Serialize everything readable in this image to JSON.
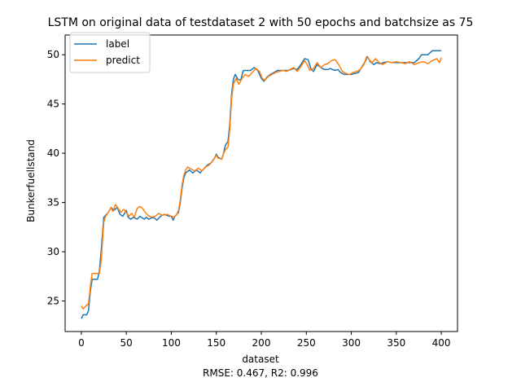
{
  "chart_data": {
    "type": "line",
    "title": "LSTM on original data of testdataset 2 with 50 epochs and batchsize as 75",
    "xlabel": "dataset",
    "xlabel_note": "RMSE: 0.467, R2: 0.996",
    "ylabel": "Bunkerfuellstand",
    "xlim": [
      -18,
      418
    ],
    "ylim": [
      21.9,
      52.0
    ],
    "xticks": [
      0,
      50,
      100,
      150,
      200,
      250,
      300,
      350,
      400
    ],
    "yticks": [
      25,
      30,
      35,
      40,
      45,
      50
    ],
    "legend": "top-left",
    "grid": false,
    "series": [
      {
        "name": "label",
        "color": "#1f77b4",
        "points": [
          [
            0,
            23.2
          ],
          [
            2,
            23.6
          ],
          [
            6,
            23.6
          ],
          [
            8,
            24.0
          ],
          [
            10,
            26.0
          ],
          [
            12,
            27.2
          ],
          [
            18,
            27.2
          ],
          [
            20,
            28.0
          ],
          [
            22,
            30.0
          ],
          [
            25,
            33.5
          ],
          [
            30,
            34.0
          ],
          [
            33,
            34.5
          ],
          [
            36,
            34.2
          ],
          [
            40,
            34.5
          ],
          [
            43,
            33.8
          ],
          [
            46,
            33.6
          ],
          [
            50,
            34.2
          ],
          [
            52,
            33.5
          ],
          [
            55,
            33.3
          ],
          [
            58,
            33.5
          ],
          [
            62,
            33.3
          ],
          [
            65,
            33.6
          ],
          [
            70,
            33.3
          ],
          [
            72,
            33.5
          ],
          [
            75,
            33.3
          ],
          [
            80,
            33.5
          ],
          [
            84,
            33.2
          ],
          [
            88,
            33.6
          ],
          [
            92,
            33.8
          ],
          [
            98,
            33.6
          ],
          [
            100,
            33.6
          ],
          [
            102,
            33.2
          ],
          [
            104,
            33.6
          ],
          [
            108,
            34.0
          ],
          [
            110,
            35.0
          ],
          [
            112,
            36.5
          ],
          [
            114,
            37.5
          ],
          [
            116,
            38.0
          ],
          [
            120,
            38.3
          ],
          [
            124,
            38.0
          ],
          [
            128,
            38.3
          ],
          [
            132,
            38.0
          ],
          [
            136,
            38.4
          ],
          [
            140,
            38.8
          ],
          [
            144,
            39.0
          ],
          [
            148,
            39.5
          ],
          [
            150,
            39.9
          ],
          [
            152,
            39.6
          ],
          [
            156,
            39.4
          ],
          [
            158,
            40.0
          ],
          [
            160,
            40.8
          ],
          [
            163,
            41.2
          ],
          [
            165,
            43.0
          ],
          [
            167,
            46.0
          ],
          [
            169,
            47.5
          ],
          [
            171,
            48.0
          ],
          [
            174,
            47.5
          ],
          [
            177,
            47.4
          ],
          [
            180,
            48.4
          ],
          [
            184,
            48.4
          ],
          [
            188,
            48.4
          ],
          [
            192,
            48.7
          ],
          [
            196,
            48.4
          ],
          [
            200,
            47.6
          ],
          [
            203,
            47.3
          ],
          [
            206,
            47.7
          ],
          [
            210,
            48.0
          ],
          [
            214,
            48.2
          ],
          [
            218,
            48.4
          ],
          [
            222,
            48.4
          ],
          [
            226,
            48.4
          ],
          [
            230,
            48.4
          ],
          [
            236,
            48.6
          ],
          [
            240,
            48.5
          ],
          [
            244,
            49.0
          ],
          [
            248,
            49.6
          ],
          [
            252,
            49.5
          ],
          [
            255,
            48.6
          ],
          [
            258,
            48.3
          ],
          [
            262,
            49.0
          ],
          [
            266,
            48.7
          ],
          [
            270,
            48.5
          ],
          [
            274,
            48.5
          ],
          [
            277,
            48.6
          ],
          [
            279,
            48.5
          ],
          [
            282,
            48.4
          ],
          [
            285,
            48.5
          ],
          [
            288,
            48.2
          ],
          [
            292,
            48.0
          ],
          [
            296,
            48.0
          ],
          [
            300,
            48.0
          ],
          [
            304,
            48.1
          ],
          [
            308,
            48.2
          ],
          [
            312,
            48.8
          ],
          [
            316,
            49.4
          ],
          [
            318,
            49.8
          ],
          [
            321,
            49.3
          ],
          [
            325,
            49.0
          ],
          [
            328,
            49.2
          ],
          [
            332,
            49.1
          ],
          [
            336,
            49.2
          ],
          [
            340,
            49.3
          ],
          [
            345,
            49.2
          ],
          [
            350,
            49.2
          ],
          [
            355,
            49.2
          ],
          [
            360,
            49.2
          ],
          [
            365,
            49.2
          ],
          [
            370,
            49.2
          ],
          [
            375,
            49.6
          ],
          [
            378,
            50.0
          ],
          [
            385,
            50.0
          ],
          [
            390,
            50.4
          ],
          [
            395,
            50.4
          ],
          [
            400,
            50.4
          ]
        ]
      },
      {
        "name": "predict",
        "color": "#ff7f0e",
        "points": [
          [
            0,
            24.5
          ],
          [
            2,
            24.2
          ],
          [
            5,
            24.5
          ],
          [
            8,
            24.7
          ],
          [
            10,
            26.5
          ],
          [
            12,
            27.8
          ],
          [
            17,
            27.8
          ],
          [
            20,
            27.8
          ],
          [
            22,
            29.0
          ],
          [
            25,
            33.0
          ],
          [
            27,
            33.6
          ],
          [
            30,
            34.0
          ],
          [
            33,
            34.5
          ],
          [
            35,
            34.1
          ],
          [
            38,
            34.8
          ],
          [
            41,
            34.4
          ],
          [
            44,
            34.0
          ],
          [
            47,
            34.3
          ],
          [
            50,
            34.0
          ],
          [
            53,
            33.6
          ],
          [
            56,
            33.9
          ],
          [
            59,
            33.5
          ],
          [
            62,
            34.4
          ],
          [
            65,
            34.6
          ],
          [
            68,
            34.4
          ],
          [
            71,
            34.0
          ],
          [
            74,
            33.7
          ],
          [
            78,
            33.5
          ],
          [
            82,
            33.6
          ],
          [
            86,
            33.9
          ],
          [
            90,
            33.7
          ],
          [
            95,
            33.8
          ],
          [
            100,
            33.6
          ],
          [
            103,
            33.5
          ],
          [
            106,
            33.8
          ],
          [
            108,
            34.2
          ],
          [
            110,
            35.3
          ],
          [
            112,
            36.8
          ],
          [
            114,
            37.8
          ],
          [
            116,
            38.3
          ],
          [
            118,
            38.6
          ],
          [
            122,
            38.4
          ],
          [
            126,
            38.2
          ],
          [
            130,
            38.5
          ],
          [
            134,
            38.2
          ],
          [
            138,
            38.6
          ],
          [
            142,
            38.8
          ],
          [
            146,
            39.2
          ],
          [
            150,
            39.8
          ],
          [
            152,
            39.5
          ],
          [
            156,
            39.4
          ],
          [
            158,
            40.0
          ],
          [
            161,
            40.5
          ],
          [
            163,
            40.6
          ],
          [
            165,
            42.5
          ],
          [
            167,
            45.5
          ],
          [
            169,
            47.0
          ],
          [
            172,
            47.6
          ],
          [
            175,
            47.0
          ],
          [
            178,
            47.5
          ],
          [
            182,
            48.0
          ],
          [
            186,
            47.8
          ],
          [
            190,
            48.2
          ],
          [
            194,
            48.6
          ],
          [
            198,
            48.3
          ],
          [
            201,
            47.6
          ],
          [
            204,
            47.4
          ],
          [
            208,
            47.8
          ],
          [
            212,
            48.0
          ],
          [
            216,
            48.2
          ],
          [
            220,
            48.3
          ],
          [
            224,
            48.4
          ],
          [
            228,
            48.3
          ],
          [
            232,
            48.5
          ],
          [
            236,
            48.7
          ],
          [
            240,
            48.3
          ],
          [
            244,
            48.8
          ],
          [
            248,
            49.4
          ],
          [
            251,
            49.0
          ],
          [
            254,
            48.4
          ],
          [
            258,
            48.6
          ],
          [
            262,
            49.2
          ],
          [
            266,
            48.7
          ],
          [
            270,
            49.0
          ],
          [
            274,
            49.1
          ],
          [
            278,
            49.4
          ],
          [
            282,
            49.5
          ],
          [
            286,
            49.0
          ],
          [
            290,
            48.3
          ],
          [
            294,
            48.1
          ],
          [
            298,
            48.0
          ],
          [
            302,
            48.2
          ],
          [
            306,
            48.3
          ],
          [
            310,
            48.5
          ],
          [
            314,
            49.0
          ],
          [
            317,
            49.8
          ],
          [
            320,
            49.5
          ],
          [
            323,
            49.2
          ],
          [
            327,
            49.6
          ],
          [
            331,
            49.2
          ],
          [
            335,
            49.0
          ],
          [
            340,
            49.3
          ],
          [
            345,
            49.2
          ],
          [
            350,
            49.3
          ],
          [
            355,
            49.2
          ],
          [
            360,
            49.1
          ],
          [
            365,
            49.3
          ],
          [
            370,
            49.0
          ],
          [
            375,
            49.2
          ],
          [
            380,
            49.3
          ],
          [
            385,
            49.1
          ],
          [
            390,
            49.4
          ],
          [
            395,
            49.6
          ],
          [
            398,
            49.2
          ],
          [
            400,
            49.7
          ]
        ]
      }
    ]
  }
}
